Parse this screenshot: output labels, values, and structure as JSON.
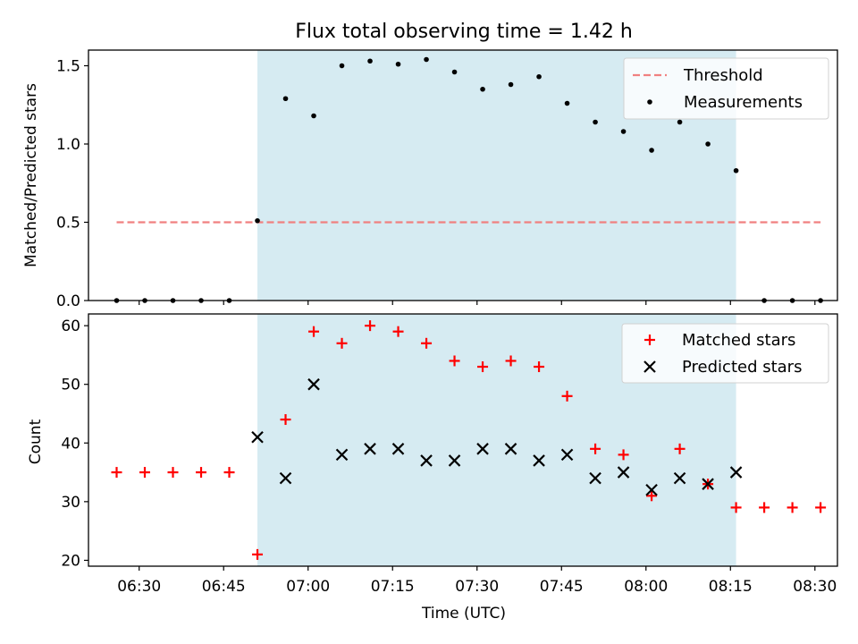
{
  "chart_data": [
    {
      "type": "scatter",
      "title": "Flux total observing time = 1.42 h",
      "xlabel": "",
      "ylabel": "Matched/Predicted stars",
      "ylim": [
        0,
        1.6
      ],
      "yticks": [
        0.0,
        0.5,
        1.0,
        1.5
      ],
      "ytick_labels": [
        "0.0",
        "0.5",
        "1.0",
        "1.5"
      ],
      "xlim": [
        "06:21",
        "08:34"
      ],
      "xticks": [
        "06:30",
        "06:45",
        "07:00",
        "07:15",
        "07:30",
        "07:45",
        "08:00",
        "08:15",
        "08:30"
      ],
      "shaded_region": {
        "from": "06:51",
        "to": "08:16",
        "color": "#add8e6"
      },
      "threshold": {
        "name": "Threshold",
        "value": 0.5,
        "from": "06:26",
        "to": "08:31",
        "color": "#f08080"
      },
      "legend_position": "top-right",
      "series": [
        {
          "name": "Measurements",
          "marker": "dot",
          "color": "#000000",
          "x": [
            "06:26",
            "06:31",
            "06:36",
            "06:41",
            "06:46",
            "06:51",
            "06:56",
            "07:01",
            "07:06",
            "07:11",
            "07:16",
            "07:21",
            "07:26",
            "07:31",
            "07:36",
            "07:41",
            "07:46",
            "07:51",
            "07:56",
            "08:01",
            "08:06",
            "08:11",
            "08:16",
            "08:21",
            "08:26",
            "08:31"
          ],
          "y": [
            0,
            0,
            0,
            0,
            0,
            0.51,
            1.29,
            1.18,
            1.5,
            1.53,
            1.51,
            1.54,
            1.46,
            1.35,
            1.38,
            1.43,
            1.26,
            1.14,
            1.08,
            0.96,
            1.14,
            1.0,
            0.83,
            0,
            0,
            0
          ]
        }
      ]
    },
    {
      "type": "scatter",
      "title": "",
      "xlabel": "Time (UTC)",
      "ylabel": "Count",
      "ylim": [
        19,
        62
      ],
      "yticks": [
        20,
        30,
        40,
        50,
        60
      ],
      "ytick_labels": [
        "20",
        "30",
        "40",
        "50",
        "60"
      ],
      "xlim": [
        "06:21",
        "08:34"
      ],
      "xticks": [
        "06:30",
        "06:45",
        "07:00",
        "07:15",
        "07:30",
        "07:45",
        "08:00",
        "08:15",
        "08:30"
      ],
      "xtick_labels": [
        "06:30",
        "06:45",
        "07:00",
        "07:15",
        "07:30",
        "07:45",
        "08:00",
        "08:15",
        "08:30"
      ],
      "shaded_region": {
        "from": "06:51",
        "to": "08:16",
        "color": "#add8e6"
      },
      "legend_position": "top-right",
      "series": [
        {
          "name": "Matched stars",
          "marker": "plus",
          "color": "#ff0000",
          "x": [
            "06:26",
            "06:31",
            "06:36",
            "06:41",
            "06:46",
            "06:51",
            "06:56",
            "07:01",
            "07:06",
            "07:11",
            "07:16",
            "07:21",
            "07:26",
            "07:31",
            "07:36",
            "07:41",
            "07:46",
            "07:51",
            "07:56",
            "08:01",
            "08:06",
            "08:11",
            "08:16",
            "08:21",
            "08:26",
            "08:31"
          ],
          "y": [
            35,
            35,
            35,
            35,
            35,
            21,
            44,
            59,
            57,
            60,
            59,
            57,
            54,
            53,
            54,
            53,
            48,
            39,
            38,
            31,
            39,
            33,
            29,
            29,
            29,
            29
          ]
        },
        {
          "name": "Predicted stars",
          "marker": "x",
          "color": "#000000",
          "x": [
            "06:51",
            "06:56",
            "07:01",
            "07:06",
            "07:11",
            "07:16",
            "07:21",
            "07:26",
            "07:31",
            "07:36",
            "07:41",
            "07:46",
            "07:51",
            "07:56",
            "08:01",
            "08:06",
            "08:11",
            "08:16"
          ],
          "y": [
            41,
            34,
            50,
            38,
            39,
            39,
            37,
            37,
            39,
            39,
            37,
            38,
            34,
            35,
            32,
            34,
            33,
            35
          ]
        }
      ]
    }
  ]
}
